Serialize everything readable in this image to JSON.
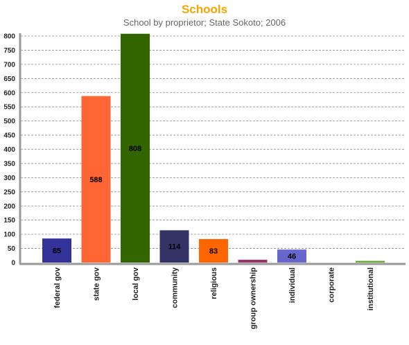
{
  "chart_data": {
    "type": "bar",
    "title": "Schools",
    "subtitle": "School by proprietor; State Sokoto; 2006",
    "xlabel": "",
    "ylabel": "",
    "categories": [
      "federal gov",
      "state gov",
      "local gov",
      "community",
      "religious",
      "group ownership",
      "individual",
      "corporate",
      "institutional"
    ],
    "values": [
      85,
      588,
      808,
      114,
      83,
      10,
      46,
      0,
      6
    ],
    "data_labels": [
      "85",
      "588",
      "808",
      "114",
      "83",
      "",
      "46",
      "",
      ""
    ],
    "colors": [
      "#333399",
      "#ff6633",
      "#336600",
      "#333366",
      "#ff6600",
      "#993366",
      "#6666cc",
      "#cccccc",
      "#66aa33"
    ],
    "ylim": [
      0,
      800
    ],
    "yticks": [
      0,
      50,
      100,
      150,
      200,
      250,
      300,
      350,
      400,
      450,
      500,
      550,
      600,
      650,
      700,
      750,
      800
    ],
    "grid": true,
    "legend": "none"
  }
}
